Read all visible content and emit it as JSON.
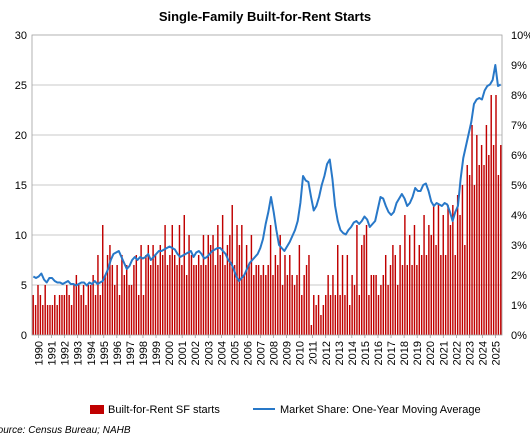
{
  "chart_data": {
    "type": "bar",
    "title": "Single-Family Built-for-Rent Starts",
    "source_note": "Source: Census Bureau; NAHB",
    "left_axis": {
      "range": [
        0,
        30
      ],
      "ticks": [
        "0",
        "5",
        "10",
        "15",
        "20",
        "25",
        "30"
      ]
    },
    "right_axis": {
      "range": [
        0,
        10
      ],
      "ticks": [
        "0%",
        "1%",
        "2%",
        "3%",
        "4%",
        "5%",
        "6%",
        "7%",
        "8%",
        "9%",
        "10%"
      ]
    },
    "x_ticks": [
      "1990",
      "1991",
      "1992",
      "1993",
      "1994",
      "1995",
      "1996",
      "1997",
      "1998",
      "1999",
      "2000",
      "2001",
      "2002",
      "2003",
      "2004",
      "2005",
      "2006",
      "2007",
      "2008",
      "2009",
      "2010",
      "2011",
      "2012",
      "2013",
      "2014",
      "2015",
      "2016",
      "2017",
      "2018",
      "2019",
      "2020",
      "2021",
      "2022",
      "2023",
      "2024",
      "2025"
    ],
    "grid": "horizontal",
    "legend_position": "bottom",
    "colors": {
      "bars": "#c00000",
      "line": "#2878c8"
    },
    "series": [
      {
        "name": "Built-for-Rent SF starts",
        "type": "bar",
        "axis": "left",
        "values": [
          4,
          3,
          5,
          4,
          3,
          5,
          3,
          3,
          3,
          4,
          3,
          4,
          4,
          4,
          5,
          4,
          3,
          5,
          6,
          5,
          4,
          5,
          3,
          5,
          5,
          6,
          4,
          8,
          4,
          11,
          6,
          8,
          9,
          7,
          5,
          7,
          4,
          8,
          6,
          7,
          5,
          5,
          7,
          8,
          4,
          9,
          4,
          8,
          9,
          7,
          9,
          8,
          7,
          9,
          8,
          11,
          7,
          8,
          11,
          8,
          7,
          11,
          7,
          12,
          6,
          10,
          8,
          7,
          7,
          8,
          7,
          10,
          7,
          10,
          9,
          10,
          7,
          11,
          8,
          12,
          7,
          9,
          10,
          13,
          7,
          11,
          9,
          11,
          6,
          9,
          7,
          10,
          6,
          7,
          7,
          6,
          7,
          6,
          7,
          11,
          6,
          8,
          7,
          10,
          5,
          8,
          6,
          8,
          6,
          5,
          6,
          9,
          4,
          6,
          7,
          8,
          1,
          4,
          3,
          4,
          2,
          3,
          4,
          6,
          4,
          6,
          4,
          9,
          4,
          8,
          4,
          8,
          3,
          6,
          5,
          11,
          4,
          9,
          10,
          11,
          4,
          6,
          6,
          6,
          4,
          5,
          6,
          8,
          5,
          7,
          9,
          8,
          5,
          9,
          7,
          12,
          7,
          10,
          7,
          11,
          7,
          9,
          8,
          12,
          8,
          11,
          10,
          13,
          9,
          13,
          8,
          12,
          8,
          13,
          11,
          13,
          8,
          14,
          12,
          15,
          9,
          17,
          16,
          21,
          15,
          20,
          17,
          19,
          17,
          21,
          18,
          24,
          19,
          24,
          16,
          19
        ]
      },
      {
        "name": "Market Share: One-Year Moving Average",
        "type": "line",
        "axis": "right",
        "values": [
          1.95,
          1.9,
          1.95,
          2.05,
          1.85,
          1.75,
          1.9,
          1.9,
          1.8,
          1.75,
          1.75,
          1.7,
          1.75,
          1.8,
          1.7,
          1.7,
          1.65,
          1.7,
          1.75,
          1.75,
          1.65,
          1.75,
          1.7,
          1.8,
          1.7,
          1.75,
          1.8,
          2.0,
          2.2,
          2.5,
          2.7,
          2.75,
          2.8,
          2.6,
          2.4,
          2.2,
          2.3,
          2.5,
          2.6,
          2.5,
          2.6,
          2.55,
          2.6,
          2.7,
          2.5,
          2.6,
          2.7,
          2.8,
          2.8,
          2.85,
          2.9,
          2.95,
          2.9,
          2.85,
          2.7,
          2.6,
          2.65,
          2.7,
          2.75,
          2.8,
          2.6,
          2.75,
          2.8,
          2.7,
          2.55,
          2.6,
          2.7,
          2.8,
          2.85,
          2.9,
          2.9,
          2.8,
          2.7,
          2.5,
          2.4,
          2.2,
          1.95,
          1.8,
          1.9,
          2.0,
          2.2,
          2.4,
          2.5,
          2.6,
          2.7,
          2.9,
          3.2,
          3.7,
          4.1,
          4.6,
          4.1,
          3.5,
          3.0,
          2.9,
          2.8,
          2.95,
          3.1,
          3.3,
          3.5,
          3.8,
          4.4,
          5.3,
          5.15,
          5.1,
          4.6,
          4.15,
          4.3,
          4.6,
          5.0,
          5.3,
          5.7,
          5.85,
          5.2,
          4.3,
          3.8,
          3.5,
          3.4,
          3.35,
          3.5,
          3.6,
          3.75,
          3.8,
          3.7,
          3.8,
          3.95,
          3.85,
          3.6,
          3.7,
          3.8,
          4.2,
          4.6,
          4.55,
          4.3,
          4.1,
          4.0,
          4.1,
          4.4,
          4.55,
          4.7,
          4.55,
          4.3,
          4.4,
          4.6,
          4.9,
          4.8,
          4.8,
          5.0,
          5.05,
          4.8,
          4.45,
          4.3,
          4.4,
          4.35,
          4.3,
          4.4,
          4.35,
          4.1,
          3.8,
          4.1,
          4.3,
          5.2,
          5.9,
          6.3,
          6.7,
          7.1,
          7.7,
          7.85,
          7.9,
          7.85,
          8.15,
          8.3,
          8.35,
          8.5,
          9.0,
          8.3,
          8.35
        ]
      }
    ]
  }
}
